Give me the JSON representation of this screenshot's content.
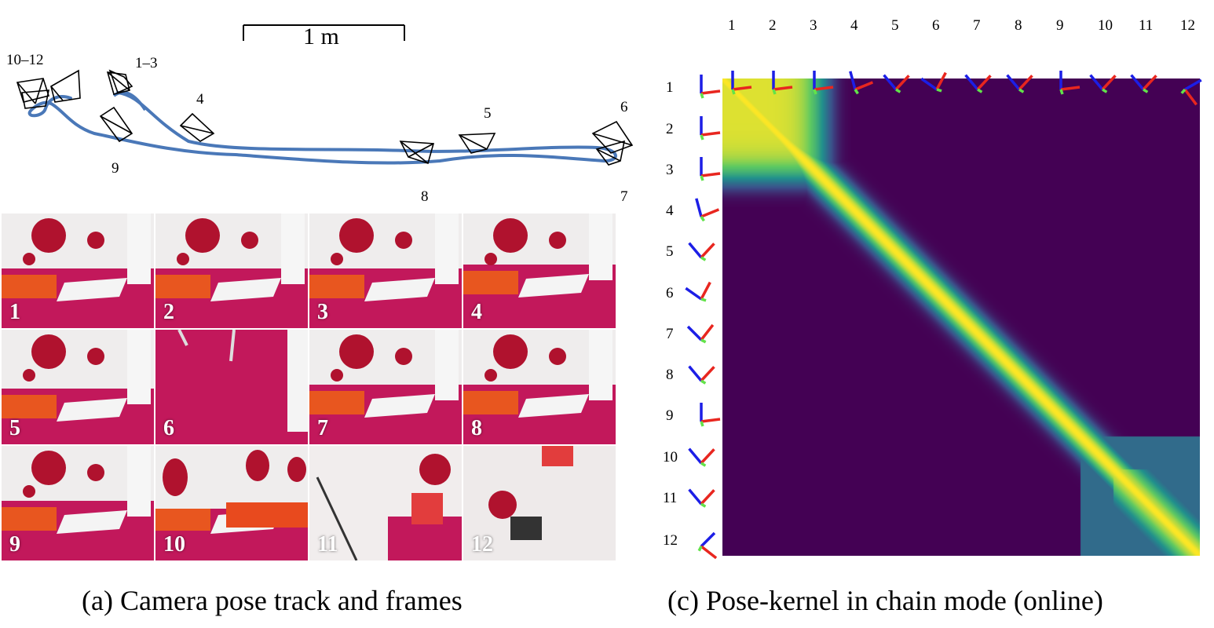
{
  "panel_a": {
    "scale_label": "1 m",
    "pose_labels": [
      "10–12",
      "1–3",
      "4",
      "9",
      "8",
      "5",
      "6",
      "7"
    ],
    "frame_labels": [
      "1",
      "2",
      "3",
      "4",
      "5",
      "6",
      "7",
      "8",
      "9",
      "10",
      "11",
      "12"
    ],
    "caption": "(a) Camera pose track and frames"
  },
  "panel_c": {
    "caption": "(c) Pose-kernel in chain mode (online)",
    "column_labels": [
      "1",
      "2",
      "3",
      "4",
      "5",
      "6",
      "7",
      "8",
      "9",
      "10",
      "11",
      "12"
    ],
    "row_labels": [
      "1",
      "2",
      "3",
      "4",
      "5",
      "6",
      "7",
      "8",
      "9",
      "10",
      "11",
      "12"
    ]
  },
  "colors": {
    "track": "#4a78b8",
    "heat_low": "#440154",
    "heat_mid": "#21918c",
    "heat_high": "#fde725",
    "axis_red": "#e8261f",
    "axis_green": "#62e24a",
    "axis_blue": "#1c1ee6",
    "carpet": "#c2185b"
  }
}
